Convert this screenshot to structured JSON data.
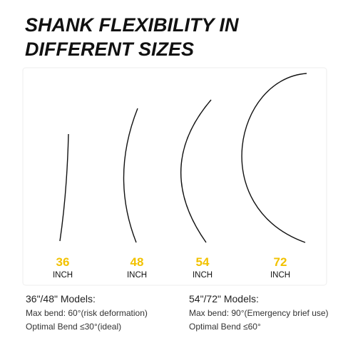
{
  "header": {
    "title_lines": [
      "SHANK FLEXIBILITY IN",
      "DIFFERENT SIZES"
    ]
  },
  "sizes": [
    {
      "size": "36",
      "unit": "INCH"
    },
    {
      "size": "48",
      "unit": "INCH"
    },
    {
      "size": "54",
      "unit": "INCH"
    },
    {
      "size": "72",
      "unit": "INCH"
    }
  ],
  "notes": [
    {
      "heading": "36\"/48\" Models:",
      "lines": [
        "Max bend: 60°(risk deformation)",
        "Optimal Bend ≤30°(ideal)"
      ]
    },
    {
      "heading": "54\"/72\" Models:",
      "lines": [
        "Max bend: 90°(Emergency brief use)",
        "Optimal Bend ≤60°"
      ]
    }
  ]
}
